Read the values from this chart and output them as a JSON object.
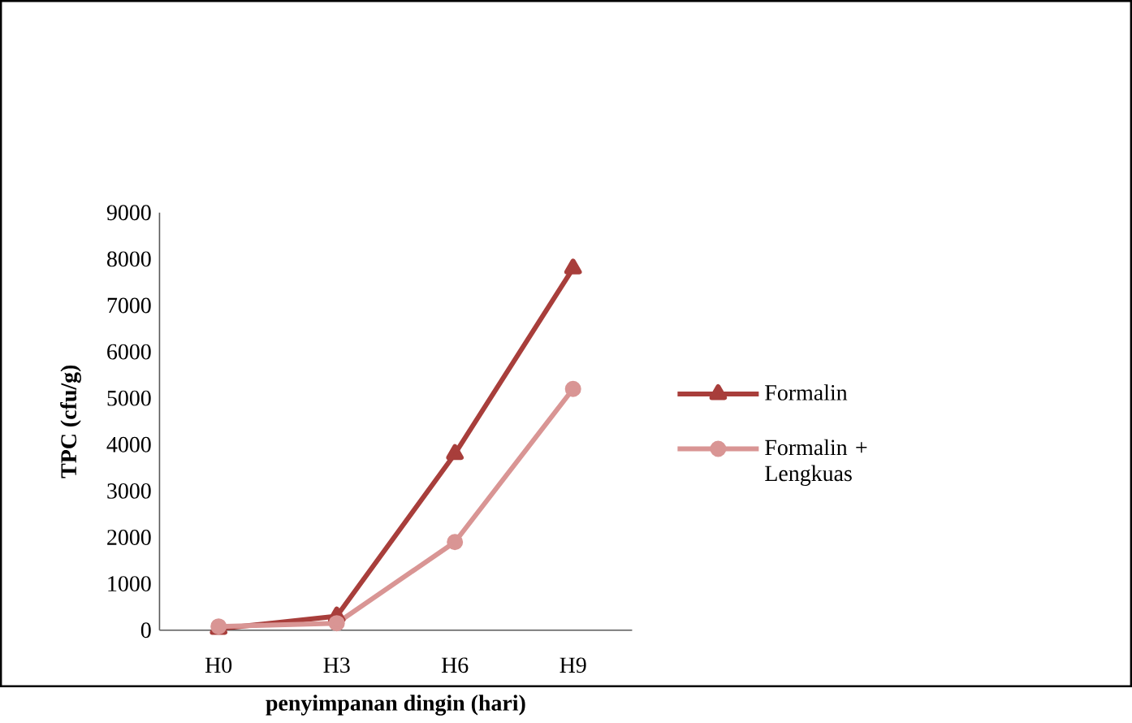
{
  "chart_data": {
    "type": "line",
    "xlabel": "penyimpanan dingin (hari)",
    "ylabel": "TPC (cfu/g)",
    "categories": [
      "H0",
      "H3",
      "H6",
      "H9"
    ],
    "series": [
      {
        "name": "Formalin",
        "color": "#a83e3b",
        "marker": "triangle",
        "values": [
          30,
          300,
          3800,
          7800
        ]
      },
      {
        "name": "Formalin + Lengkuas",
        "color": "#d99594",
        "marker": "circle",
        "values": [
          80,
          150,
          1900,
          5200
        ]
      }
    ],
    "ylim": [
      0,
      9000
    ],
    "yticks": [
      0,
      1000,
      2000,
      3000,
      4000,
      5000,
      6000,
      7000,
      8000,
      9000
    ],
    "grid": false,
    "legend": "right"
  }
}
